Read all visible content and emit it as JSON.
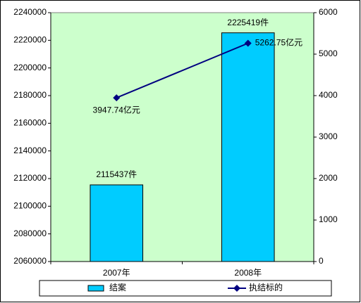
{
  "chart_data": {
    "type": "bar",
    "categories": [
      "2007年",
      "2008年"
    ],
    "series": [
      {
        "name": "结案",
        "type": "bar",
        "color": "#00ccff",
        "values": [
          2115437,
          2225419
        ],
        "value_labels": [
          "2115437件",
          "2225419件"
        ]
      },
      {
        "name": "执结标的",
        "type": "line",
        "axis": "y2",
        "color": "#000080",
        "values": [
          3947.74,
          5262.75
        ],
        "value_labels": [
          "3947.74亿元",
          "5262.75亿元"
        ]
      }
    ],
    "ylim": [
      2060000,
      2240000
    ],
    "yticks": [
      2060000,
      2080000,
      2100000,
      2120000,
      2140000,
      2160000,
      2180000,
      2200000,
      2220000,
      2240000
    ],
    "y2lim": [
      0,
      6000
    ],
    "y2ticks": [
      0,
      1000,
      2000,
      3000,
      4000,
      5000,
      6000
    ],
    "plot_background": "#ccffcc",
    "legend": "bottom"
  }
}
